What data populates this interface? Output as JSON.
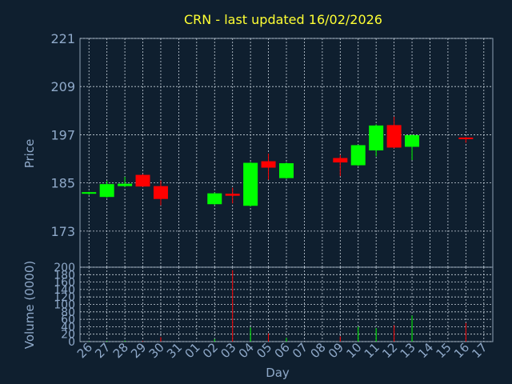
{
  "chart_data": [
    {
      "type": "candlestick",
      "title": "CRN - last updated 16/02/2026",
      "ylabel": "Price",
      "ylim": [
        164,
        221
      ],
      "yticks": [
        221,
        209,
        197,
        185,
        173
      ],
      "grid": true,
      "up_color": "#00ff00",
      "down_color": "#ff0000",
      "categories": [
        "26",
        "27",
        "28",
        "29",
        "30",
        "31",
        "01",
        "02",
        "03",
        "04",
        "05",
        "06",
        "07",
        "08",
        "09",
        "10",
        "11",
        "12",
        "13",
        "14",
        "15",
        "16",
        "17"
      ],
      "candles": [
        {
          "x": "26",
          "open": 182.3,
          "close": 182.7,
          "high": 182.8,
          "low": 182.0
        },
        {
          "x": "27",
          "open": 181.5,
          "close": 184.7,
          "high": 185.5,
          "low": 181.3
        },
        {
          "x": "28",
          "open": 184.2,
          "close": 184.8,
          "high": 186.5,
          "low": 184.0
        },
        {
          "x": "29",
          "open": 187.0,
          "close": 184.1,
          "high": 187.2,
          "low": 184.0
        },
        {
          "x": "30",
          "open": 184.2,
          "close": 181.0,
          "high": 185.6,
          "low": 179.4
        },
        {
          "x": "02",
          "open": 179.7,
          "close": 182.4,
          "high": 182.6,
          "low": 179.5
        },
        {
          "x": "03",
          "open": 182.3,
          "close": 181.8,
          "high": 183.8,
          "low": 179.9
        },
        {
          "x": "04",
          "open": 179.3,
          "close": 190.0,
          "high": 190.2,
          "low": 179.1
        },
        {
          "x": "05",
          "open": 190.4,
          "close": 188.8,
          "high": 192.3,
          "low": 185.8
        },
        {
          "x": "06",
          "open": 186.2,
          "close": 189.9,
          "high": 190.1,
          "low": 186.0
        },
        {
          "x": "09",
          "open": 191.2,
          "close": 190.1,
          "high": 192.0,
          "low": 186.7
        },
        {
          "x": "10",
          "open": 189.4,
          "close": 194.4,
          "high": 194.5,
          "low": 189.2
        },
        {
          "x": "11",
          "open": 193.1,
          "close": 199.3,
          "high": 199.6,
          "low": 191.6
        },
        {
          "x": "12",
          "open": 199.4,
          "close": 193.8,
          "high": 201.5,
          "low": 193.6
        },
        {
          "x": "13",
          "open": 194.0,
          "close": 196.9,
          "high": 197.1,
          "low": 190.7
        },
        {
          "x": "16",
          "open": 196.3,
          "close": 196.0,
          "high": 196.4,
          "low": 195.0
        }
      ]
    },
    {
      "type": "bar",
      "ylabel": "Volume (0000)",
      "xlabel": "Day",
      "ylim": [
        0,
        200
      ],
      "yticks": [
        0,
        20,
        40,
        60,
        80,
        100,
        120,
        140,
        160,
        180,
        200
      ],
      "categories": [
        "26",
        "27",
        "28",
        "29",
        "30",
        "31",
        "01",
        "02",
        "03",
        "04",
        "05",
        "06",
        "07",
        "08",
        "09",
        "10",
        "11",
        "12",
        "13",
        "14",
        "15",
        "16",
        "17"
      ],
      "bars": [
        {
          "x": "26",
          "value": 1,
          "direction": "up"
        },
        {
          "x": "27",
          "value": 2,
          "direction": "up"
        },
        {
          "x": "28",
          "value": 3,
          "direction": "up"
        },
        {
          "x": "29",
          "value": 2,
          "direction": "down"
        },
        {
          "x": "30",
          "value": 12,
          "direction": "down"
        },
        {
          "x": "02",
          "value": 7,
          "direction": "up"
        },
        {
          "x": "03",
          "value": 192,
          "direction": "down"
        },
        {
          "x": "04",
          "value": 38,
          "direction": "up"
        },
        {
          "x": "05",
          "value": 22,
          "direction": "down"
        },
        {
          "x": "06",
          "value": 10,
          "direction": "up"
        },
        {
          "x": "09",
          "value": 14,
          "direction": "down"
        },
        {
          "x": "10",
          "value": 40,
          "direction": "up"
        },
        {
          "x": "11",
          "value": 36,
          "direction": "up"
        },
        {
          "x": "12",
          "value": 44,
          "direction": "down"
        },
        {
          "x": "13",
          "value": 70,
          "direction": "up"
        },
        {
          "x": "16",
          "value": 50,
          "direction": "down"
        }
      ]
    }
  ]
}
